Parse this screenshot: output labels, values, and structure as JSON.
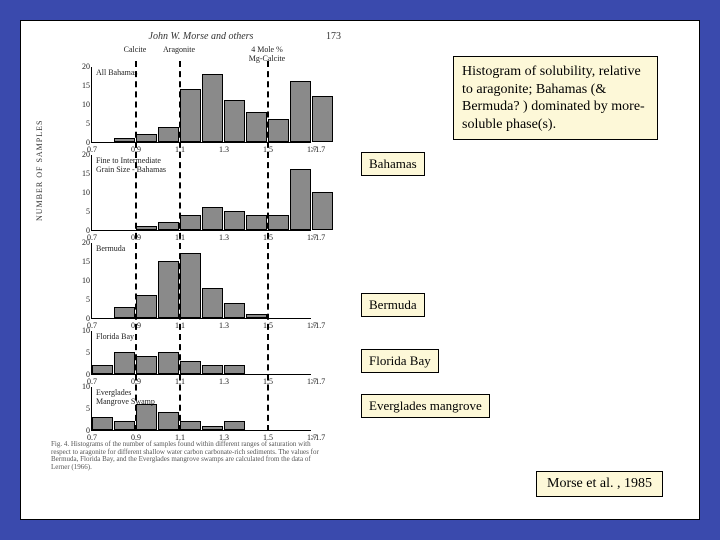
{
  "frame": {
    "outer_color": "#3a4aad",
    "inner_bg": "#ffffff"
  },
  "figure": {
    "header_text": "John W. Morse and others",
    "page_number": "173",
    "y_axis_label": "NUMBER OF SAMPLES",
    "top_markers": {
      "calcite": {
        "label": "Calcite",
        "x_value": 0.9
      },
      "aragonite": {
        "label": "Aragonite",
        "x_value": 1.1
      },
      "mgcalcite": {
        "label": "4 Mole %\nMg-Calcite",
        "x_value": 1.5
      }
    },
    "x_axis": {
      "min": 0.7,
      "max": 1.7,
      "ticks": [
        "0.7",
        "0.9",
        "1.1",
        "1.3",
        "1.5",
        "1.7",
        ">1.7"
      ]
    },
    "panels": [
      {
        "title": "All Bahamas",
        "y_max": 20,
        "y_ticks": [
          0,
          5,
          10,
          15,
          20
        ],
        "bins": [
          {
            "x": 0.7,
            "h": 0
          },
          {
            "x": 0.8,
            "h": 1
          },
          {
            "x": 0.9,
            "h": 2
          },
          {
            "x": 1.0,
            "h": 4
          },
          {
            "x": 1.1,
            "h": 14
          },
          {
            "x": 1.2,
            "h": 18
          },
          {
            "x": 1.3,
            "h": 11
          },
          {
            "x": 1.4,
            "h": 8
          },
          {
            "x": 1.5,
            "h": 6
          },
          {
            "x": 1.6,
            "h": 16
          },
          {
            "x": 1.7,
            "h": 12
          }
        ]
      },
      {
        "title": "Fine to Intermediate\nGrain Size - Bahamas",
        "y_max": 20,
        "y_ticks": [
          0,
          5,
          10,
          15,
          20
        ],
        "bins": [
          {
            "x": 0.7,
            "h": 0
          },
          {
            "x": 0.8,
            "h": 0
          },
          {
            "x": 0.9,
            "h": 1
          },
          {
            "x": 1.0,
            "h": 2
          },
          {
            "x": 1.1,
            "h": 4
          },
          {
            "x": 1.2,
            "h": 6
          },
          {
            "x": 1.3,
            "h": 5
          },
          {
            "x": 1.4,
            "h": 4
          },
          {
            "x": 1.5,
            "h": 4
          },
          {
            "x": 1.6,
            "h": 16
          },
          {
            "x": 1.7,
            "h": 10
          }
        ]
      },
      {
        "title": "Bermuda",
        "y_max": 20,
        "y_ticks": [
          0,
          5,
          10,
          15,
          20
        ],
        "bins": [
          {
            "x": 0.7,
            "h": 0
          },
          {
            "x": 0.8,
            "h": 3
          },
          {
            "x": 0.9,
            "h": 6
          },
          {
            "x": 1.0,
            "h": 15
          },
          {
            "x": 1.1,
            "h": 17
          },
          {
            "x": 1.2,
            "h": 8
          },
          {
            "x": 1.3,
            "h": 4
          },
          {
            "x": 1.4,
            "h": 1
          },
          {
            "x": 1.5,
            "h": 0
          },
          {
            "x": 1.6,
            "h": 0
          },
          {
            "x": 1.7,
            "h": 0
          }
        ]
      },
      {
        "title": "Florida Bay",
        "y_max": 10,
        "y_ticks": [
          0,
          5,
          10
        ],
        "bins": [
          {
            "x": 0.7,
            "h": 2
          },
          {
            "x": 0.8,
            "h": 5
          },
          {
            "x": 0.9,
            "h": 4
          },
          {
            "x": 1.0,
            "h": 5
          },
          {
            "x": 1.1,
            "h": 3
          },
          {
            "x": 1.2,
            "h": 2
          },
          {
            "x": 1.3,
            "h": 2
          },
          {
            "x": 1.4,
            "h": 0
          },
          {
            "x": 1.5,
            "h": 0
          },
          {
            "x": 1.6,
            "h": 0
          },
          {
            "x": 1.7,
            "h": 0
          }
        ]
      },
      {
        "title": "Everglades\nMangrove Swamp",
        "y_max": 10,
        "y_ticks": [
          0,
          5,
          10
        ],
        "bins": [
          {
            "x": 0.7,
            "h": 3
          },
          {
            "x": 0.8,
            "h": 2
          },
          {
            "x": 0.9,
            "h": 6
          },
          {
            "x": 1.0,
            "h": 4
          },
          {
            "x": 1.1,
            "h": 2
          },
          {
            "x": 1.2,
            "h": 1
          },
          {
            "x": 1.3,
            "h": 2
          },
          {
            "x": 1.4,
            "h": 0
          },
          {
            "x": 1.5,
            "h": 0
          },
          {
            "x": 1.6,
            "h": 0
          },
          {
            "x": 1.7,
            "h": 0
          }
        ]
      }
    ],
    "caption": "Fig. 4. Histograms of the number of samples found within different ranges of saturation with respect to aragonite for different shallow water carbon carbonate-rich sediments. The values for Bermuda, Florida Bay, and the Everglades mangrove swamps are calculated from the data of Lerner (1966).",
    "bar_color": "#8a8a8a",
    "bar_border": "#000000"
  },
  "labels": {
    "bahamas": "Bahamas",
    "bermuda": "Bermuda",
    "florida": "Florida Bay",
    "everglades": "Everglades mangrove"
  },
  "description": "Histogram of solubility, relative to aragonite; Bahamas (& Bermuda? ) dominated by more-soluble phase(s).",
  "citation": "Morse et al. , 1985"
}
